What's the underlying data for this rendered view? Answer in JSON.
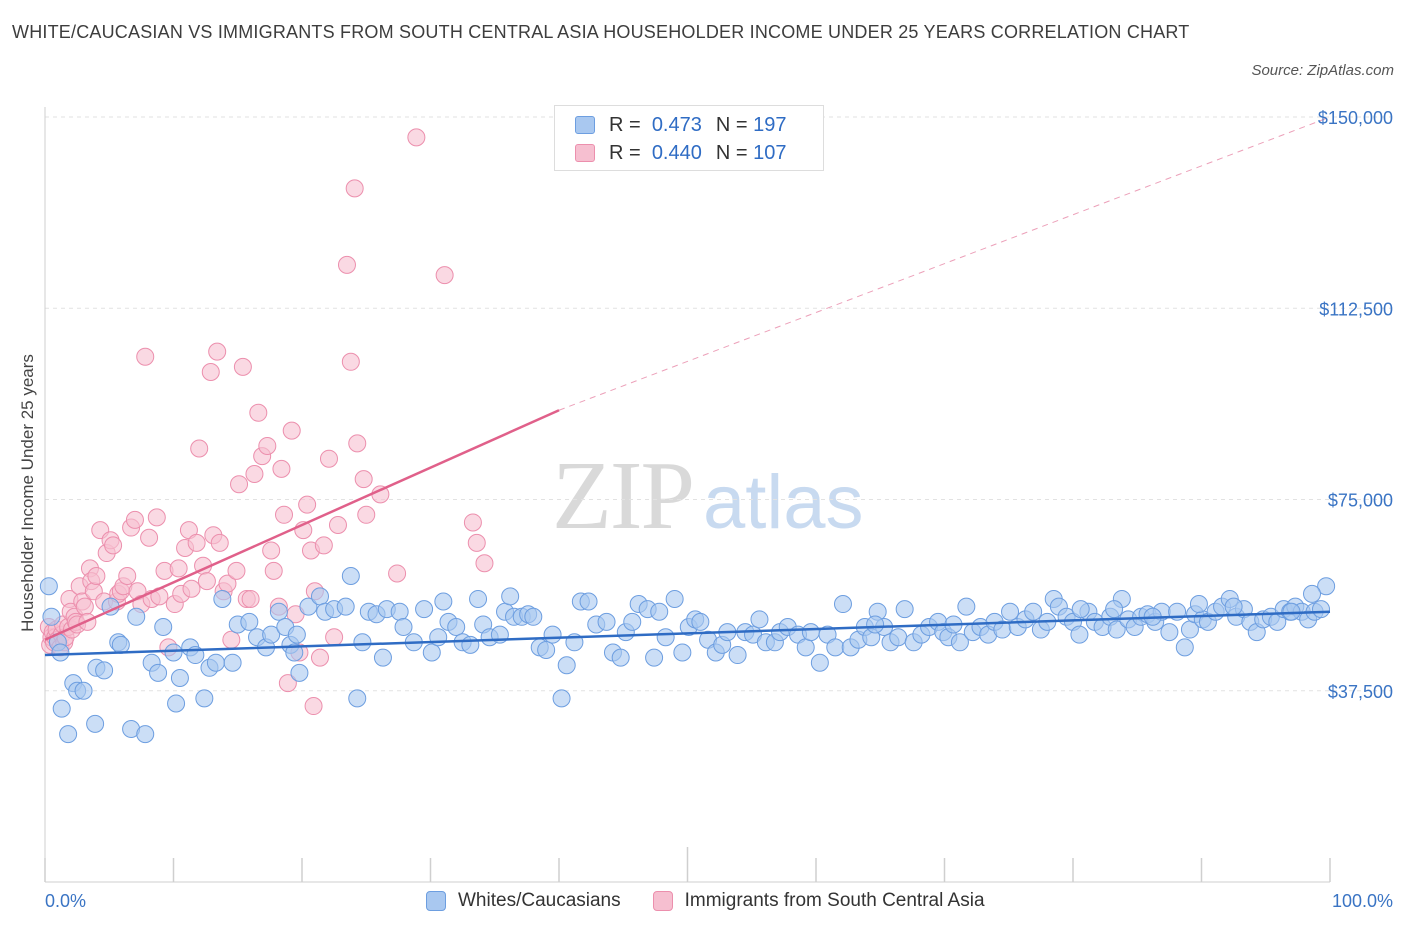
{
  "title": "WHITE/CAUCASIAN VS IMMIGRANTS FROM SOUTH CENTRAL ASIA HOUSEHOLDER INCOME UNDER 25 YEARS CORRELATION CHART",
  "source": "Source: ZipAtlas.com",
  "watermark": {
    "zip": "ZIP",
    "atlas": "atlas"
  },
  "legend": {
    "rows": [
      {
        "r_label": "R =",
        "r_value": "0.473",
        "n_label": "N =",
        "n_value": "197"
      },
      {
        "r_label": "R =",
        "r_value": "0.440",
        "n_label": "N =",
        "n_value": "107"
      }
    ]
  },
  "bottom_legend": {
    "whites": "Whites/Caucasians",
    "immigrants": "Immigrants from South Central Asia"
  },
  "colors": {
    "blue_fill": "#a9c8f0",
    "blue_stroke": "#6d9ee0",
    "blue_line": "#2f6cc4",
    "pink_fill": "#f6bfd0",
    "pink_stroke": "#ec8fad",
    "pink_line": "#e0608a",
    "grid": "#e2e2e2"
  },
  "chart_data": {
    "type": "scatter",
    "title": "WHITE/CAUCASIAN VS IMMIGRANTS FROM SOUTH CENTRAL ASIA HOUSEHOLDER INCOME UNDER 25 YEARS CORRELATION CHART",
    "xlabel": "",
    "ylabel": "Householder Income Under 25 years",
    "xlim": [
      0,
      100
    ],
    "ylim": [
      0,
      150000
    ],
    "x_tick_labels": [
      "0.0%",
      "100.0%"
    ],
    "y_ticks": [
      37500,
      75000,
      112500,
      150000
    ],
    "y_tick_labels": [
      "$37,500",
      "$75,000",
      "$112,500",
      "$150,000"
    ],
    "grid": true,
    "legend_position": "top-center",
    "series": [
      {
        "name": "Whites/Caucasians",
        "r": 0.473,
        "n": 197,
        "trend": {
          "x0": 0,
          "y0": 44500,
          "x1": 100,
          "y1": 53000
        },
        "points": [
          [
            0.3,
            58
          ],
          [
            0.5,
            52
          ],
          [
            1,
            47
          ],
          [
            1.2,
            45
          ],
          [
            1.3,
            34
          ],
          [
            1.8,
            29
          ],
          [
            2.2,
            39
          ],
          [
            2.5,
            37.5
          ],
          [
            3,
            37.5
          ],
          [
            3.9,
            31
          ],
          [
            4,
            42
          ],
          [
            4.6,
            41.5
          ],
          [
            5.1,
            54
          ],
          [
            5.7,
            47
          ],
          [
            5.9,
            46.5
          ],
          [
            6.7,
            30
          ],
          [
            7.1,
            52
          ],
          [
            7.8,
            29
          ],
          [
            8.3,
            43
          ],
          [
            8.8,
            41
          ],
          [
            9.2,
            50
          ],
          [
            10,
            45
          ],
          [
            10.2,
            35
          ],
          [
            10.5,
            40
          ],
          [
            11.3,
            46
          ],
          [
            11.7,
            44.5
          ],
          [
            12.4,
            36
          ],
          [
            12.8,
            42
          ],
          [
            13.3,
            43
          ],
          [
            13.8,
            55.5
          ],
          [
            14.6,
            43
          ],
          [
            15,
            50.5
          ],
          [
            15.9,
            51
          ],
          [
            16.5,
            48
          ],
          [
            17.2,
            46
          ],
          [
            17.6,
            48.5
          ],
          [
            18.2,
            53
          ],
          [
            18.7,
            50
          ],
          [
            19.1,
            46.5
          ],
          [
            19.4,
            45
          ],
          [
            19.6,
            48.5
          ],
          [
            19.8,
            41
          ],
          [
            20.5,
            54
          ],
          [
            21.4,
            56
          ],
          [
            21.8,
            53
          ],
          [
            22.5,
            53.5
          ],
          [
            23.4,
            54
          ],
          [
            23.8,
            60
          ],
          [
            24.3,
            36
          ],
          [
            24.7,
            47
          ],
          [
            25.2,
            53
          ],
          [
            25.8,
            52.5
          ],
          [
            26.3,
            44
          ],
          [
            26.6,
            53.5
          ],
          [
            27.6,
            53
          ],
          [
            27.9,
            50
          ],
          [
            28.7,
            47
          ],
          [
            29.5,
            53.5
          ],
          [
            30.1,
            45
          ],
          [
            30.6,
            48
          ],
          [
            31,
            55
          ],
          [
            31.4,
            51
          ],
          [
            32,
            50
          ],
          [
            32.5,
            47
          ],
          [
            33.1,
            46.5
          ],
          [
            33.7,
            55.5
          ],
          [
            34.1,
            50.5
          ],
          [
            34.6,
            48
          ],
          [
            35.4,
            48.5
          ],
          [
            35.8,
            53
          ],
          [
            36.2,
            56
          ],
          [
            36.5,
            52
          ],
          [
            37.1,
            52
          ],
          [
            37.6,
            52.5
          ],
          [
            38,
            52
          ],
          [
            38.5,
            46
          ],
          [
            39,
            45.5
          ],
          [
            39.5,
            48.5
          ],
          [
            40.2,
            36
          ],
          [
            40.6,
            42.5
          ],
          [
            41.2,
            47
          ],
          [
            41.7,
            55
          ],
          [
            42.3,
            55
          ],
          [
            42.9,
            50.5
          ],
          [
            43.7,
            51
          ],
          [
            44.2,
            45
          ],
          [
            44.8,
            44
          ],
          [
            45.2,
            49
          ],
          [
            45.7,
            51
          ],
          [
            46.2,
            54.5
          ],
          [
            46.9,
            53.5
          ],
          [
            47.4,
            44
          ],
          [
            47.8,
            53
          ],
          [
            48.3,
            48
          ],
          [
            49,
            55.5
          ],
          [
            49.6,
            45
          ],
          [
            50.1,
            50
          ],
          [
            50.6,
            51.5
          ],
          [
            51,
            51
          ],
          [
            51.6,
            47.5
          ],
          [
            52.2,
            45
          ],
          [
            52.7,
            46.5
          ],
          [
            53.1,
            49
          ],
          [
            53.9,
            44.5
          ],
          [
            54.5,
            49
          ],
          [
            55.1,
            48.5
          ],
          [
            55.6,
            51.5
          ],
          [
            56.1,
            47
          ],
          [
            56.8,
            47
          ],
          [
            57.2,
            49
          ],
          [
            57.8,
            50
          ],
          [
            58.6,
            48.5
          ],
          [
            59.2,
            46
          ],
          [
            59.6,
            49
          ],
          [
            60.3,
            43
          ],
          [
            60.9,
            48.5
          ],
          [
            61.5,
            46
          ],
          [
            62.1,
            54.5
          ],
          [
            62.7,
            46
          ],
          [
            63.3,
            47.5
          ],
          [
            63.8,
            50
          ],
          [
            64.3,
            48
          ],
          [
            64.8,
            53
          ],
          [
            65.3,
            50
          ],
          [
            65.8,
            47
          ],
          [
            66.4,
            48
          ],
          [
            66.9,
            53.5
          ],
          [
            67.6,
            47
          ],
          [
            68.2,
            48.5
          ],
          [
            68.8,
            50
          ],
          [
            69.5,
            51
          ],
          [
            69.9,
            49
          ],
          [
            70.3,
            48
          ],
          [
            70.7,
            50.5
          ],
          [
            71.2,
            47
          ],
          [
            71.7,
            54
          ],
          [
            72.2,
            49
          ],
          [
            72.8,
            50
          ],
          [
            73.4,
            48.5
          ],
          [
            73.9,
            51
          ],
          [
            74.5,
            49.5
          ],
          [
            75.1,
            53
          ],
          [
            75.7,
            50
          ],
          [
            76.3,
            51.5
          ],
          [
            76.9,
            53
          ],
          [
            77.5,
            49.5
          ],
          [
            78,
            51
          ],
          [
            78.5,
            55.5
          ],
          [
            78.9,
            54
          ],
          [
            79.5,
            52
          ],
          [
            80,
            51
          ],
          [
            80.5,
            48.5
          ],
          [
            81.2,
            53
          ],
          [
            81.7,
            51
          ],
          [
            82.3,
            50
          ],
          [
            82.9,
            52
          ],
          [
            83.4,
            49.5
          ],
          [
            83.8,
            55.5
          ],
          [
            84.3,
            51.5
          ],
          [
            84.8,
            50
          ],
          [
            85.3,
            52
          ],
          [
            85.8,
            52.5
          ],
          [
            86.4,
            51
          ],
          [
            86.9,
            53
          ],
          [
            87.5,
            49
          ],
          [
            88.1,
            53
          ],
          [
            88.7,
            46
          ],
          [
            89.1,
            49.5
          ],
          [
            89.5,
            52.5
          ],
          [
            90.1,
            51.5
          ],
          [
            90.5,
            51
          ],
          [
            91.1,
            53
          ],
          [
            91.6,
            54
          ],
          [
            92.2,
            55.5
          ],
          [
            92.7,
            52
          ],
          [
            93.3,
            53.5
          ],
          [
            93.8,
            51
          ],
          [
            94.3,
            49
          ],
          [
            94.8,
            51.5
          ],
          [
            95.4,
            52
          ],
          [
            95.9,
            51
          ],
          [
            96.4,
            53.5
          ],
          [
            96.9,
            53
          ],
          [
            97.3,
            54
          ],
          [
            97.8,
            53
          ],
          [
            98.3,
            51.5
          ],
          [
            98.8,
            53
          ],
          [
            99.3,
            53.5
          ],
          [
            99.7,
            58
          ],
          [
            98.6,
            56.5
          ],
          [
            97,
            53
          ],
          [
            92.5,
            54
          ],
          [
            89.8,
            54.5
          ],
          [
            86.2,
            52
          ],
          [
            83.2,
            53.5
          ],
          [
            80.6,
            53.5
          ],
          [
            64.6,
            50.5
          ]
        ]
      },
      {
        "name": "Immigrants from South Central Asia",
        "r": 0.44,
        "n": 107,
        "trend": {
          "x0": 0,
          "y0": 47500,
          "x1": 40,
          "y1": 92500,
          "dashed_to": {
            "x": 100,
            "y": 150000
          }
        },
        "points": [
          [
            0.3,
            50
          ],
          [
            0.4,
            46.5
          ],
          [
            0.5,
            48
          ],
          [
            0.6,
            49
          ],
          [
            0.7,
            47
          ],
          [
            0.8,
            48
          ],
          [
            0.9,
            49.5
          ],
          [
            1,
            47.5
          ],
          [
            1.2,
            46
          ],
          [
            1.3,
            48.5
          ],
          [
            1.4,
            50.5
          ],
          [
            1.5,
            47
          ],
          [
            1.6,
            48
          ],
          [
            1.8,
            50
          ],
          [
            1.9,
            55.5
          ],
          [
            2,
            53
          ],
          [
            2.1,
            49.5
          ],
          [
            2.3,
            52
          ],
          [
            2.4,
            51
          ],
          [
            2.5,
            50.5
          ],
          [
            2.7,
            58
          ],
          [
            2.9,
            55
          ],
          [
            3.1,
            54
          ],
          [
            3.3,
            51
          ],
          [
            3.5,
            61.5
          ],
          [
            3.6,
            59
          ],
          [
            3.8,
            57
          ],
          [
            4,
            60
          ],
          [
            4.3,
            69
          ],
          [
            4.6,
            55
          ],
          [
            4.8,
            64.5
          ],
          [
            5.1,
            67
          ],
          [
            5.3,
            66
          ],
          [
            5.6,
            55
          ],
          [
            5.7,
            56.5
          ],
          [
            5.9,
            57
          ],
          [
            6.1,
            58
          ],
          [
            6.4,
            60
          ],
          [
            6.7,
            69.5
          ],
          [
            7,
            71
          ],
          [
            7.2,
            57
          ],
          [
            7.5,
            54.5
          ],
          [
            7.8,
            103
          ],
          [
            8.1,
            67.5
          ],
          [
            8.3,
            55.5
          ],
          [
            8.7,
            71.5
          ],
          [
            8.9,
            56
          ],
          [
            9.3,
            61
          ],
          [
            9.6,
            46
          ],
          [
            10.1,
            54.5
          ],
          [
            10.4,
            61.5
          ],
          [
            10.6,
            56.5
          ],
          [
            10.9,
            65.5
          ],
          [
            11.2,
            69
          ],
          [
            11.4,
            57.5
          ],
          [
            11.8,
            66.5
          ],
          [
            12,
            85
          ],
          [
            12.3,
            62
          ],
          [
            12.6,
            59
          ],
          [
            12.9,
            100
          ],
          [
            13.1,
            68
          ],
          [
            13.4,
            104
          ],
          [
            13.6,
            66.5
          ],
          [
            13.9,
            57
          ],
          [
            14.2,
            58.5
          ],
          [
            14.5,
            47.5
          ],
          [
            14.9,
            61
          ],
          [
            15.1,
            78
          ],
          [
            15.4,
            101
          ],
          [
            15.7,
            55.5
          ],
          [
            16,
            55.5
          ],
          [
            16.3,
            80
          ],
          [
            16.6,
            92
          ],
          [
            16.9,
            83.5
          ],
          [
            17.3,
            85.5
          ],
          [
            17.6,
            65
          ],
          [
            17.8,
            61
          ],
          [
            18.2,
            54
          ],
          [
            18.4,
            81
          ],
          [
            18.6,
            72
          ],
          [
            18.9,
            39
          ],
          [
            19.2,
            88.5
          ],
          [
            19.5,
            52.5
          ],
          [
            19.8,
            45
          ],
          [
            20.1,
            69
          ],
          [
            20.4,
            74
          ],
          [
            20.7,
            65
          ],
          [
            20.9,
            34.5
          ],
          [
            21,
            57
          ],
          [
            21.4,
            44
          ],
          [
            21.7,
            66
          ],
          [
            22.1,
            83
          ],
          [
            22.5,
            48
          ],
          [
            22.8,
            70
          ],
          [
            23.5,
            121
          ],
          [
            23.8,
            102
          ],
          [
            24.1,
            136
          ],
          [
            24.3,
            86
          ],
          [
            24.8,
            79
          ],
          [
            25,
            72
          ],
          [
            26.1,
            76
          ],
          [
            27.4,
            60.5
          ],
          [
            28.9,
            146
          ],
          [
            31.1,
            119
          ],
          [
            33.3,
            70.5
          ],
          [
            33.6,
            66.5
          ],
          [
            34.2,
            62.5
          ]
        ]
      }
    ]
  }
}
